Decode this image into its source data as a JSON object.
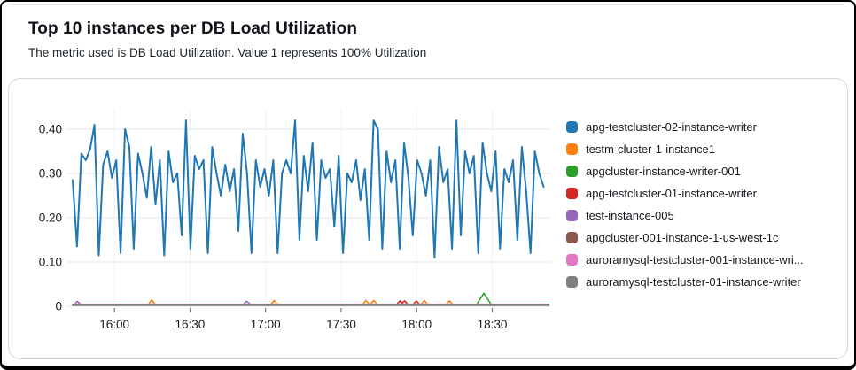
{
  "header": {
    "title": "Top 10 instances per DB Load Utilization",
    "subtitle": "The metric used is DB Load Utilization. Value 1 represents 100% Utilization"
  },
  "colors": {
    "window_border": "#000000",
    "panel_border": "#d3d6dd",
    "grid_horizontal": "#e9e9ee",
    "grid_vertical": "#f0f0f4",
    "tick_mark": "#777777",
    "axis_text": "#16191f"
  },
  "chart_data": {
    "type": "line",
    "title": "",
    "xlabel": "",
    "ylabel": "",
    "grid": true,
    "legend_position": "right",
    "ylim": [
      0,
      0.44
    ],
    "t_max": 190,
    "x_ticks": [
      {
        "t": 16.6,
        "label": "16:00"
      },
      {
        "t": 46.6,
        "label": "16:30"
      },
      {
        "t": 76.6,
        "label": "17:00"
      },
      {
        "t": 106.6,
        "label": "17:30"
      },
      {
        "t": 136.6,
        "label": "18:00"
      },
      {
        "t": 166.6,
        "label": "18:30"
      }
    ],
    "y_ticks": [
      {
        "v": 0,
        "label": "0"
      },
      {
        "v": 0.1,
        "label": "0.10"
      },
      {
        "v": 0.2,
        "label": "0.20"
      },
      {
        "v": 0.3,
        "label": "0.30"
      },
      {
        "v": 0.4,
        "label": "0.40"
      }
    ],
    "series": [
      {
        "name": "apg-testcluster-02-instance-writer",
        "legend_label": "apg-testcluster-02-instance-writer",
        "color": "#1f77b4",
        "width": 2,
        "t_start": 0,
        "t_end": 187,
        "values": [
          0.285,
          0.135,
          0.345,
          0.33,
          0.355,
          0.41,
          0.115,
          0.32,
          0.35,
          0.29,
          0.33,
          0.12,
          0.4,
          0.36,
          0.13,
          0.345,
          0.3,
          0.245,
          0.36,
          0.23,
          0.33,
          0.115,
          0.35,
          0.28,
          0.3,
          0.16,
          0.42,
          0.13,
          0.34,
          0.31,
          0.33,
          0.12,
          0.36,
          0.3,
          0.25,
          0.32,
          0.26,
          0.31,
          0.17,
          0.39,
          0.3,
          0.12,
          0.33,
          0.27,
          0.31,
          0.25,
          0.33,
          0.12,
          0.3,
          0.33,
          0.3,
          0.42,
          0.15,
          0.34,
          0.26,
          0.37,
          0.15,
          0.33,
          0.29,
          0.31,
          0.18,
          0.34,
          0.12,
          0.3,
          0.28,
          0.33,
          0.24,
          0.31,
          0.15,
          0.42,
          0.4,
          0.13,
          0.35,
          0.28,
          0.33,
          0.13,
          0.37,
          0.29,
          0.16,
          0.33,
          0.3,
          0.25,
          0.33,
          0.11,
          0.36,
          0.28,
          0.31,
          0.13,
          0.42,
          0.16,
          0.35,
          0.3,
          0.34,
          0.12,
          0.37,
          0.3,
          0.26,
          0.35,
          0.13,
          0.31,
          0.28,
          0.33,
          0.15,
          0.36,
          0.26,
          0.12,
          0.35,
          0.3,
          0.27
        ]
      },
      {
        "name": "testm-cluster-1-instance1",
        "legend_label": "testm-cluster-1-instance1",
        "color": "#ff7f0e",
        "width": 1.6,
        "points": [
          [
            0,
            0.003
          ],
          [
            29.9,
            0.003
          ],
          [
            31.4,
            0.0145
          ],
          [
            33,
            0.003
          ],
          [
            78.5,
            0.003
          ],
          [
            80,
            0.013
          ],
          [
            81.5,
            0.003
          ],
          [
            114.9,
            0.003
          ],
          [
            116.4,
            0.013
          ],
          [
            117.9,
            0.004
          ],
          [
            119.6,
            0.013
          ],
          [
            121.1,
            0.003
          ],
          [
            138.2,
            0.003
          ],
          [
            139.7,
            0.013
          ],
          [
            141.2,
            0.003
          ],
          [
            148.1,
            0.003
          ],
          [
            149.6,
            0.0125
          ],
          [
            151.1,
            0.003
          ],
          [
            189,
            0.003
          ]
        ]
      },
      {
        "name": "apgcluster-instance-writer-001",
        "legend_label": "apgcluster-instance-writer-001",
        "color": "#2ca02c",
        "width": 1.6,
        "points": [
          [
            0,
            0.003
          ],
          [
            160.3,
            0.003
          ],
          [
            163.3,
            0.0295
          ],
          [
            166.3,
            0.003
          ],
          [
            189,
            0.003
          ]
        ]
      },
      {
        "name": "apg-testcluster-01-instance-writer",
        "legend_label": "apg-testcluster-01-instance-writer",
        "color": "#d62728",
        "width": 1.6,
        "points": [
          [
            0,
            0.003
          ],
          [
            128.5,
            0.003
          ],
          [
            130,
            0.0125
          ],
          [
            130.9,
            0.007
          ],
          [
            131.8,
            0.0125
          ],
          [
            133.3,
            0.003
          ],
          [
            135,
            0.003
          ],
          [
            136.5,
            0.012
          ],
          [
            138,
            0.003
          ],
          [
            189,
            0.003
          ]
        ]
      },
      {
        "name": "test-instance-005",
        "legend_label": "test-instance-005",
        "color": "#9467bd",
        "width": 1.6,
        "points": [
          [
            0,
            0.004
          ],
          [
            0.8,
            0.004
          ],
          [
            1.8,
            0.0115
          ],
          [
            3.3,
            0.004
          ],
          [
            67.6,
            0.004
          ],
          [
            69.1,
            0.0115
          ],
          [
            70.6,
            0.004
          ],
          [
            189,
            0.004
          ]
        ]
      },
      {
        "name": "apgcluster-001-instance-1-us-west-1c",
        "legend_label": "apgcluster-001-instance-1-us-west-1c",
        "color": "#8c564b",
        "width": 1.6,
        "points": [
          [
            0,
            0.0045
          ],
          [
            189,
            0.0045
          ]
        ]
      },
      {
        "name": "auroramysql-testcluster-001-instance-wri...",
        "legend_label": "auroramysql-testcluster-001-instance-wri...",
        "color": "#e377c2",
        "width": 1.6,
        "points": [
          [
            0,
            0.0035
          ],
          [
            189,
            0.0035
          ]
        ]
      },
      {
        "name": "auroramysql-testcluster-01-instance-writer",
        "legend_label": "auroramysql-testcluster-01-instance-writer",
        "color": "#7f7f7f",
        "width": 1.8,
        "points": [
          [
            0,
            0.0025
          ],
          [
            189,
            0.0025
          ]
        ]
      }
    ]
  }
}
